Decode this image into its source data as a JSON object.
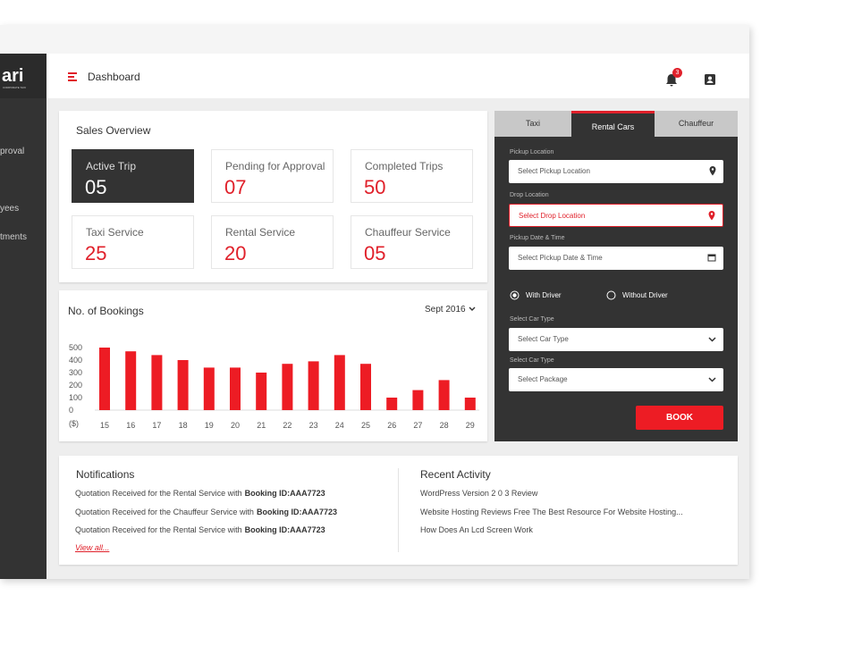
{
  "logo": {
    "text": "ari",
    "tagline": "CORPORATE TAXI"
  },
  "sidebar": {
    "items": [
      "proval",
      "yees",
      "tments"
    ]
  },
  "header": {
    "title": "Dashboard",
    "notification_count": 3
  },
  "sales_overview": {
    "title": "Sales Overview",
    "stats": [
      {
        "label": "Active Trip",
        "value": "05"
      },
      {
        "label": "Pending for Approval",
        "value": "07"
      },
      {
        "label": "Completed Trips",
        "value": "50"
      },
      {
        "label": "Taxi Service",
        "value": "25"
      },
      {
        "label": "Rental Service",
        "value": "20"
      },
      {
        "label": "Chauffeur Service",
        "value": "05"
      }
    ]
  },
  "chart_data": {
    "type": "bar",
    "title": "No. of Bookings",
    "period": "Sept 2016",
    "y_unit_label": "($)",
    "categories": [
      "15",
      "16",
      "17",
      "18",
      "19",
      "20",
      "21",
      "22",
      "23",
      "24",
      "25",
      "26",
      "27",
      "28",
      "29"
    ],
    "values": [
      500,
      470,
      440,
      400,
      340,
      340,
      300,
      370,
      390,
      440,
      370,
      100,
      160,
      240,
      100
    ],
    "color": "#ed1c24",
    "ylim": [
      0,
      500
    ],
    "yticks": [
      0,
      100,
      200,
      300,
      400,
      500
    ],
    "grid": false
  },
  "booking_form": {
    "tabs": [
      "Taxi",
      "Rental Cars",
      "Chauffeur"
    ],
    "active_tab": 1,
    "pickup_label": "Pickup Location",
    "pickup_placeholder": "Select Pickup Location",
    "drop_label": "Drop Location",
    "drop_placeholder": "Select Drop Location",
    "datetime_label": "Pickup Date & Time",
    "datetime_placeholder": "Select Pickup Date & Time",
    "driver_options": [
      "With Driver",
      "Without Driver"
    ],
    "car_type_label": "Select Car Type",
    "car_type_placeholder": "Select Car Type",
    "package_label": "Select Car Type",
    "package_placeholder": "Select Package",
    "button": "BOOK"
  },
  "notifications": {
    "title": "Notifications",
    "items": [
      {
        "text": "Quotation Received for the Rental Service with",
        "booking": "Booking ID:AAA7723"
      },
      {
        "text": "Quotation Received for the Chauffeur Service with",
        "booking": "Booking ID:AAA7723"
      },
      {
        "text": "Quotation Received for the Rental Service with",
        "booking": "Booking ID:AAA7723"
      }
    ],
    "link": "View all..."
  },
  "recent_activity": {
    "title": "Recent Activity",
    "items": [
      "WordPress Version 2 0 3 Review",
      "Website Hosting Reviews Free The Best Resource For Website Hosting...",
      "How Does An Lcd Screen Work"
    ]
  }
}
